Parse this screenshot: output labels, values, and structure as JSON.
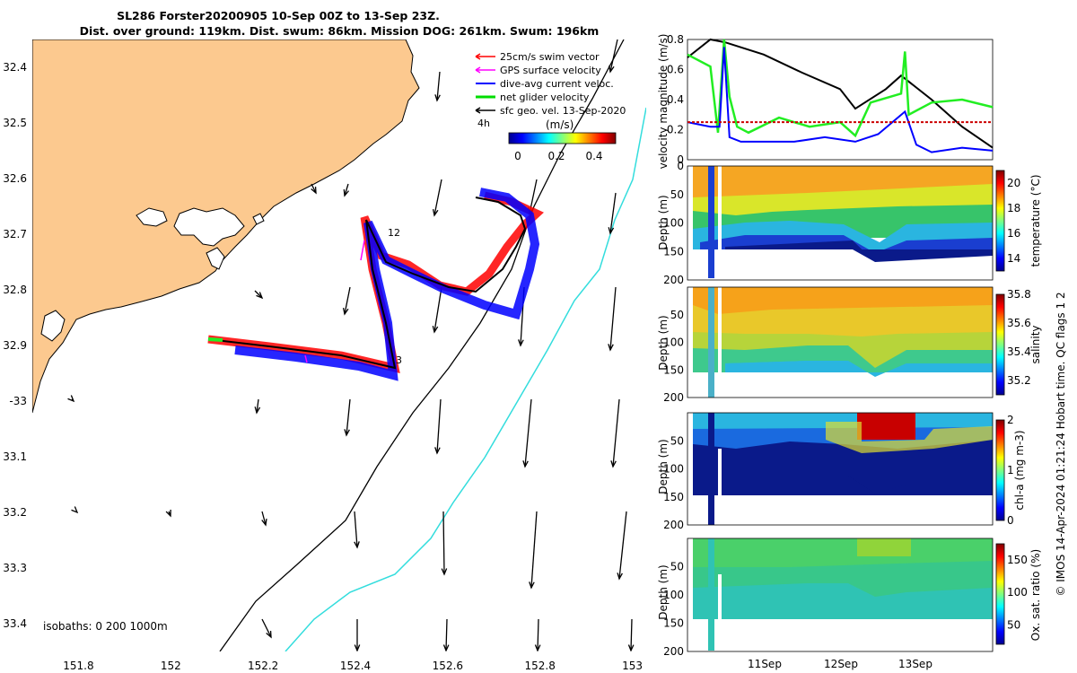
{
  "title_line1": "SL286 Forster20200905 10-Sep 00Z to 13-Sep 23Z.",
  "title_line2": "Dist. over ground: 119km. Dist. swum: 86km. Mission DOG: 261km. Swum: 196km",
  "map": {
    "lat_ticks": [
      "32.4",
      "32.5",
      "32.6",
      "32.7",
      "32.8",
      "32.9",
      "-33",
      "33.1",
      "33.2",
      "33.3",
      "33.4"
    ],
    "lon_ticks": [
      "151.8",
      "152",
      "152.2",
      "152.4",
      "152.6",
      "152.8",
      "153"
    ],
    "xlim": [
      151.7,
      153.03
    ],
    "ylim": [
      -33.45,
      -32.35
    ],
    "legend": [
      {
        "label": "25cm/s swim vector",
        "color": "#ff0000"
      },
      {
        "label": "GPS surface velocity",
        "color": "#ff00ff"
      },
      {
        "label": "dive-avg current veloc.",
        "color": "#0000ff"
      },
      {
        "label": "net glider velocity",
        "color": "#00dd00"
      },
      {
        "label": "sfc geo. vel. 13-Sep-2020",
        "color": "#000000"
      }
    ],
    "colorbar_title": "(m/s)",
    "colorbar_ticks": [
      "0",
      "0.2",
      "0.4"
    ],
    "colorbar_range": [
      0,
      0.5
    ],
    "time_label": "4h",
    "track_labels": [
      "12",
      "3"
    ],
    "isobaths_label": "isobaths: 0   200  1000m"
  },
  "chart_data": [
    {
      "type": "line",
      "ylabel": "velocity magnitude (m/s)",
      "ylim": [
        0,
        0.8
      ],
      "yticks": [
        "0",
        "0.2",
        "0.4",
        "0.6",
        "0.8"
      ],
      "xlim": [
        0,
        4
      ],
      "series": [
        {
          "name": "sfc geo. vel.",
          "color": "#000000",
          "x": [
            0,
            0.3,
            0.5,
            1.0,
            1.5,
            2.0,
            2.2,
            2.6,
            2.8,
            3.2,
            3.6,
            4.0
          ],
          "y": [
            0.68,
            0.8,
            0.78,
            0.7,
            0.58,
            0.47,
            0.34,
            0.47,
            0.56,
            0.4,
            0.22,
            0.08
          ]
        },
        {
          "name": "net glider velocity",
          "color": "#22ee22",
          "x": [
            0,
            0.3,
            0.4,
            0.48,
            0.55,
            0.65,
            0.8,
            1.2,
            1.6,
            2.0,
            2.2,
            2.4,
            2.8,
            2.85,
            2.9,
            3.2,
            3.6,
            4.0
          ],
          "y": [
            0.7,
            0.62,
            0.18,
            0.8,
            0.42,
            0.22,
            0.18,
            0.28,
            0.22,
            0.25,
            0.16,
            0.38,
            0.44,
            0.72,
            0.3,
            0.38,
            0.4,
            0.35
          ]
        },
        {
          "name": "dive-avg current veloc.",
          "color": "#0000ff",
          "x": [
            0,
            0.3,
            0.42,
            0.48,
            0.55,
            0.7,
            1.0,
            1.4,
            1.8,
            2.2,
            2.5,
            2.85,
            3.0,
            3.2,
            3.6,
            4.0
          ],
          "y": [
            0.25,
            0.22,
            0.22,
            0.75,
            0.15,
            0.12,
            0.12,
            0.12,
            0.15,
            0.12,
            0.17,
            0.32,
            0.1,
            0.05,
            0.08,
            0.06
          ]
        },
        {
          "name": "swim speed",
          "color": "#cc0000",
          "x": [
            0,
            4
          ],
          "y": [
            0.25,
            0.25
          ]
        }
      ]
    },
    {
      "type": "heatmap",
      "ylabel": "Depth (m)",
      "colorbar_label": "temperature (°C)",
      "colorbar_ticks": [
        "14",
        "16",
        "18",
        "20"
      ],
      "clim": [
        13,
        21
      ],
      "yticks": [
        "0",
        "50",
        "100",
        "150",
        "200"
      ],
      "ylim": [
        0,
        200
      ]
    },
    {
      "type": "heatmap",
      "ylabel": "Depth (m)",
      "colorbar_label": "salinity",
      "colorbar_ticks": [
        "35.2",
        "35.4",
        "35.6",
        "35.8"
      ],
      "clim": [
        35.1,
        35.8
      ],
      "yticks": [
        "50",
        "100",
        "150",
        "200"
      ],
      "ylim": [
        0,
        200
      ]
    },
    {
      "type": "heatmap",
      "ylabel": "Depth (m)",
      "colorbar_label": "chl-a (mg m-3)",
      "colorbar_ticks": [
        "0",
        "1",
        "2"
      ],
      "clim": [
        0,
        2
      ],
      "yticks": [
        "50",
        "100",
        "150",
        "200"
      ],
      "ylim": [
        0,
        200
      ]
    },
    {
      "type": "heatmap",
      "ylabel": "Depth (m)",
      "colorbar_label": "Ox. sat. ratio (%)",
      "colorbar_ticks": [
        "50",
        "100",
        "150"
      ],
      "clim": [
        20,
        175
      ],
      "yticks": [
        "50",
        "100",
        "150",
        "200"
      ],
      "ylim": [
        0,
        200
      ],
      "xticks": [
        "11Sep",
        "12Sep",
        "13Sep"
      ]
    }
  ],
  "side_note": "© IMOS 14-Apr-2024 01:21:24 Hobart time. QC flags 1  2"
}
